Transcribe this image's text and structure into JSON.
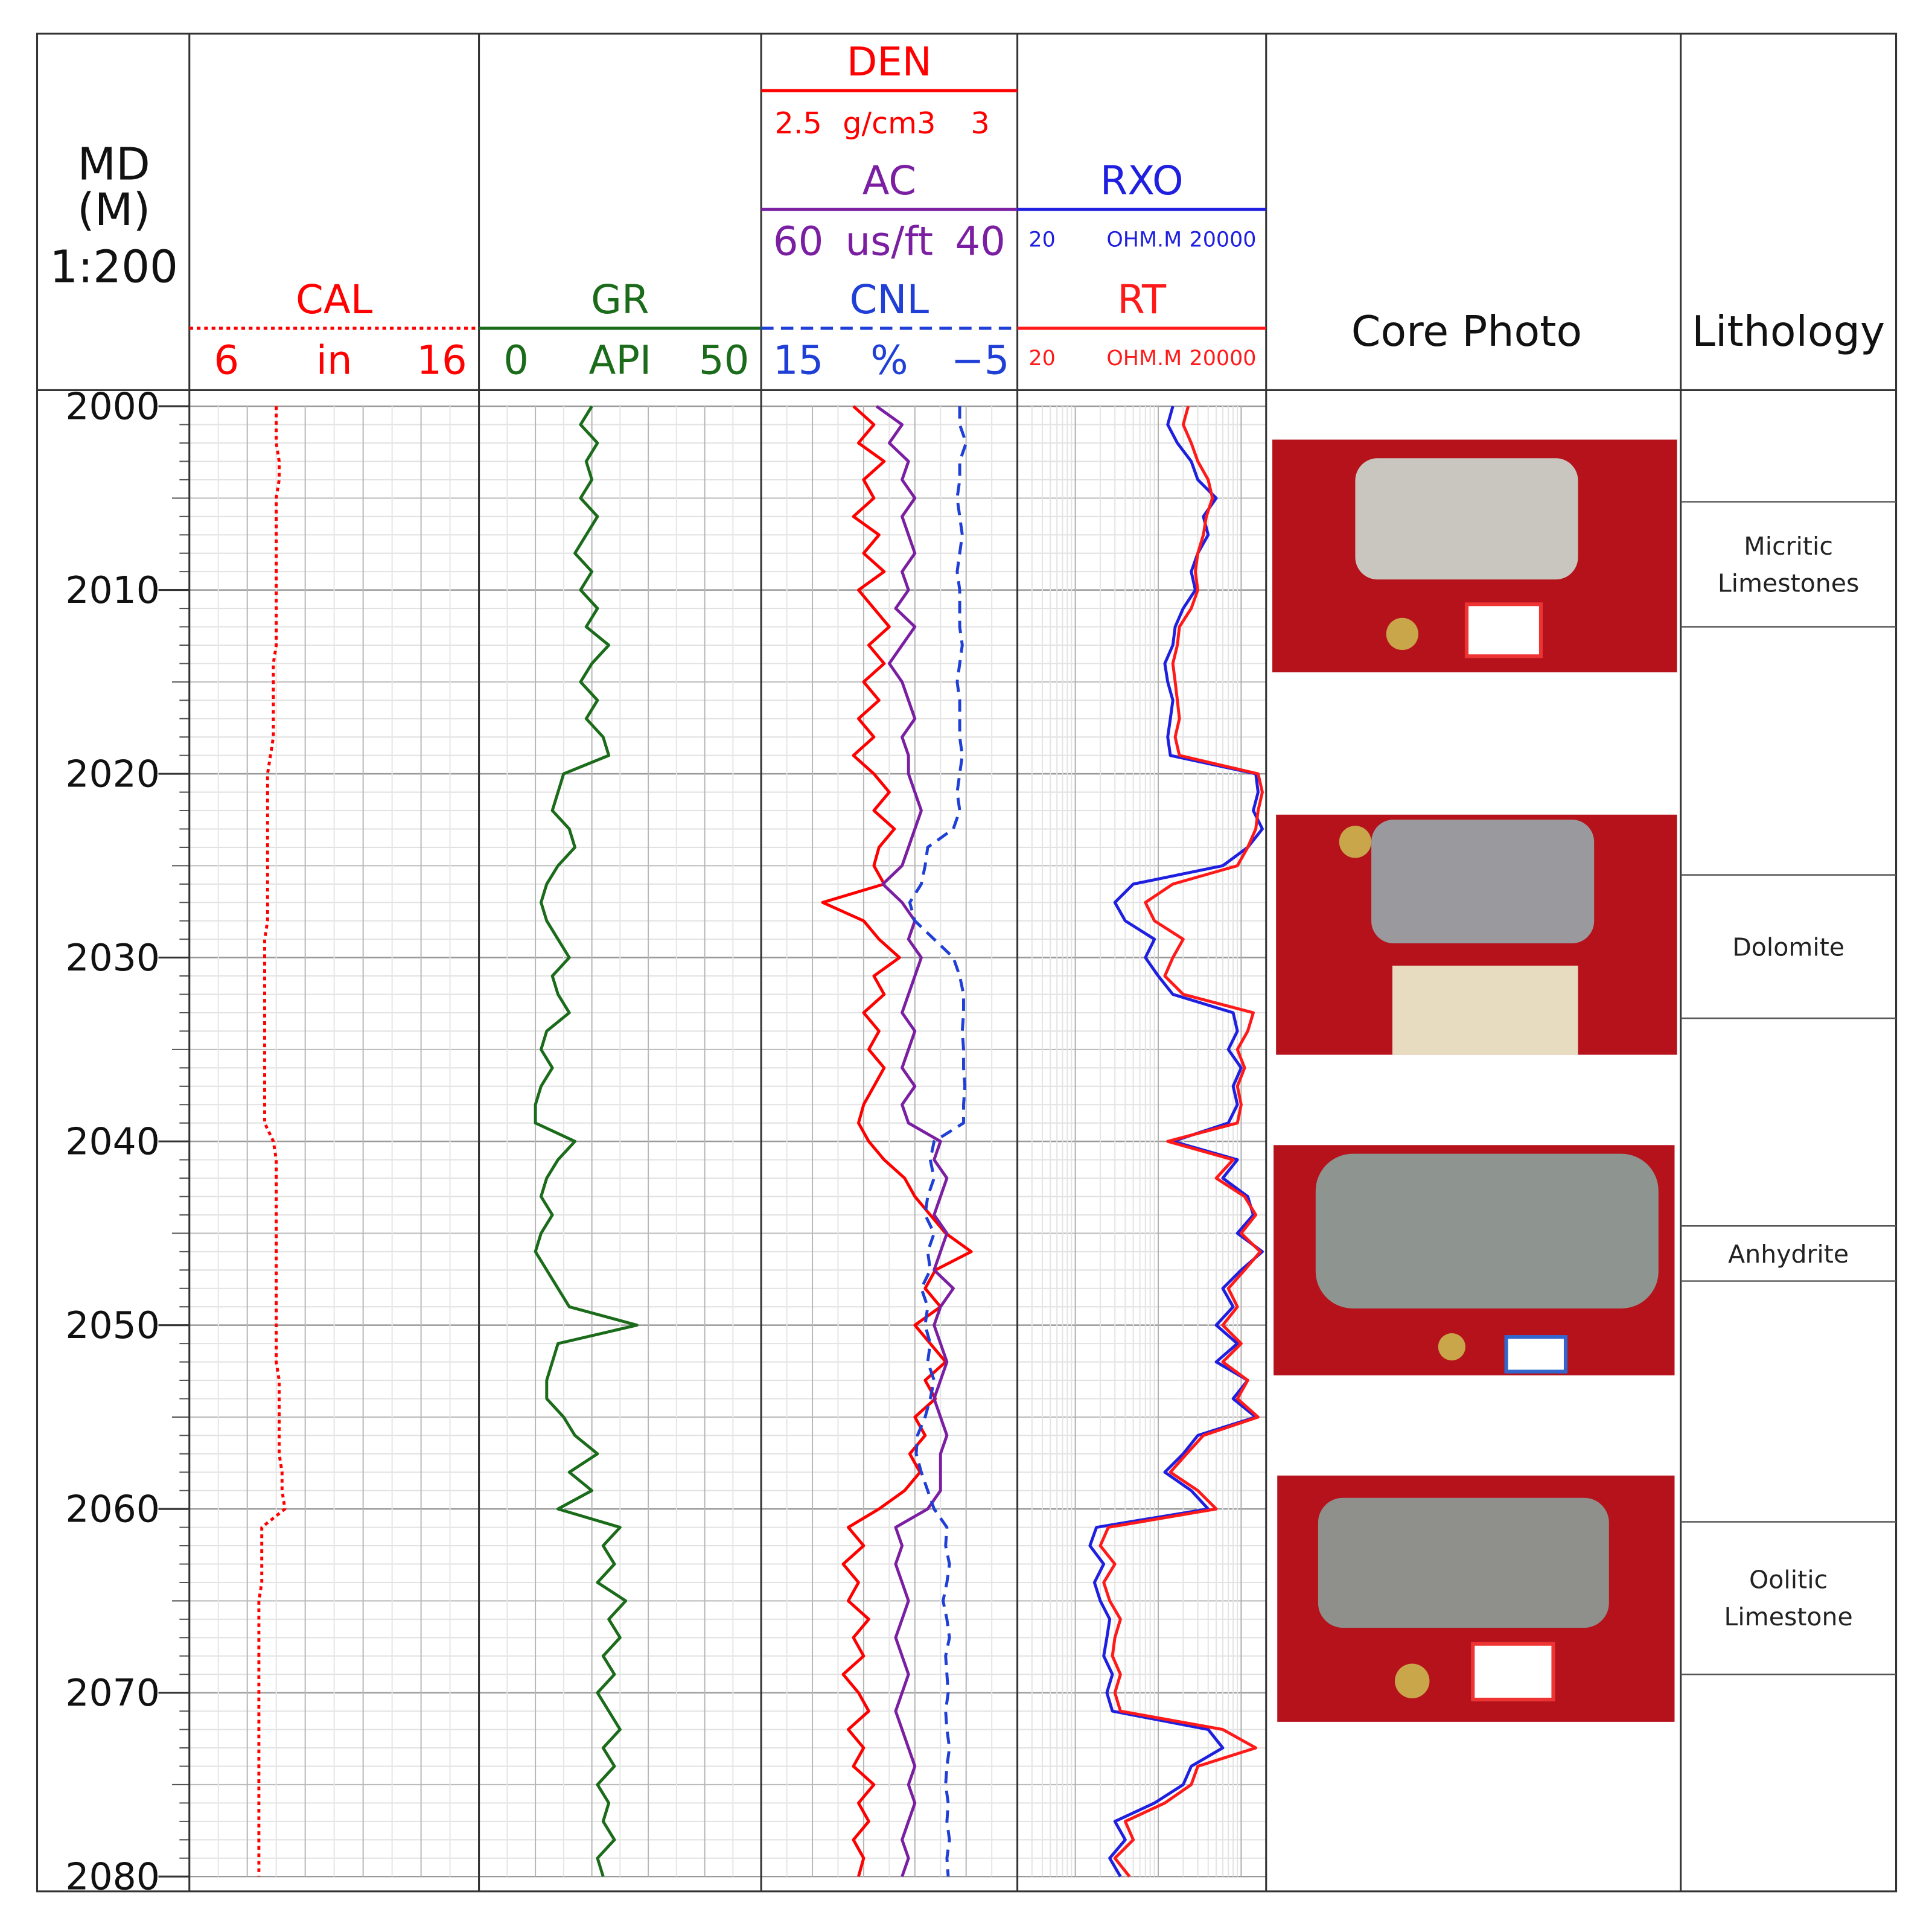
{
  "chart_data": {
    "type": "well-log",
    "depth_title": "MD",
    "depth_unit": "(M)",
    "depth_scale": "1:200",
    "ylim": [
      2000,
      2080
    ],
    "yticks": [
      2000,
      2010,
      2020,
      2030,
      2040,
      2050,
      2060,
      2070,
      2080
    ],
    "depth": [
      2000,
      2001,
      2002,
      2003,
      2004,
      2005,
      2006,
      2007,
      2008,
      2009,
      2010,
      2011,
      2012,
      2013,
      2014,
      2015,
      2016,
      2017,
      2018,
      2019,
      2020,
      2021,
      2022,
      2023,
      2024,
      2025,
      2026,
      2027,
      2028,
      2029,
      2030,
      2031,
      2032,
      2033,
      2034,
      2035,
      2036,
      2037,
      2038,
      2039,
      2040,
      2041,
      2042,
      2043,
      2044,
      2045,
      2046,
      2047,
      2048,
      2049,
      2050,
      2051,
      2052,
      2053,
      2054,
      2055,
      2056,
      2057,
      2058,
      2059,
      2060,
      2061,
      2062,
      2063,
      2064,
      2065,
      2066,
      2067,
      2068,
      2069,
      2070,
      2071,
      2072,
      2073,
      2074,
      2075,
      2076,
      2077,
      2078,
      2079,
      2080
    ],
    "tracks": [
      {
        "grid_divisions": 5,
        "curves": [
          {
            "name": "CAL",
            "unit": "in",
            "xlim": [
              6,
              16
            ],
            "color": "#ff0000",
            "line_style": "dotted",
            "values": [
              9,
              9,
              9,
              9.1,
              9.1,
              9,
              9,
              9,
              9,
              9,
              9,
              9,
              9,
              9,
              8.9,
              8.9,
              8.9,
              8.9,
              8.9,
              8.8,
              8.7,
              8.7,
              8.7,
              8.7,
              8.7,
              8.7,
              8.7,
              8.7,
              8.7,
              8.6,
              8.6,
              8.6,
              8.6,
              8.6,
              8.6,
              8.6,
              8.6,
              8.6,
              8.6,
              8.6,
              8.9,
              9,
              9,
              9,
              9,
              9,
              9,
              9,
              9,
              9,
              9,
              9,
              9,
              9.1,
              9.1,
              9.1,
              9.1,
              9.1,
              9.2,
              9.2,
              9.3,
              8.5,
              8.5,
              8.5,
              8.5,
              8.4,
              8.4,
              8.4,
              8.4,
              8.4,
              8.4,
              8.4,
              8.4,
              8.4,
              8.4,
              8.4,
              8.4,
              8.4,
              8.4,
              8.4,
              8.4
            ]
          }
        ]
      },
      {
        "grid_divisions": 5,
        "curves": [
          {
            "name": "GR",
            "unit": "API",
            "xlim": [
              0,
              50
            ],
            "color": "#1a6b1a",
            "line_style": "solid",
            "values": [
              20,
              18,
              21,
              19,
              20,
              18,
              21,
              19,
              17,
              20,
              18,
              21,
              19,
              23,
              20,
              18,
              21,
              19,
              22,
              23,
              15,
              14,
              13,
              16,
              17,
              14,
              12,
              11,
              12,
              14,
              16,
              13,
              14,
              16,
              12,
              11,
              13,
              11,
              10,
              10,
              17,
              14,
              12,
              11,
              13,
              11,
              10,
              12,
              14,
              16,
              28,
              14,
              13,
              12,
              12,
              15,
              17,
              21,
              16,
              20,
              14,
              25,
              22,
              24,
              21,
              26,
              23,
              25,
              22,
              24,
              21,
              23,
              25,
              22,
              24,
              21,
              23,
              22,
              24,
              21,
              22
            ]
          }
        ]
      },
      {
        "grid_divisions": 5,
        "curves": [
          {
            "name": "DEN",
            "unit": "g/cm3",
            "xlim": [
              2.5,
              3
            ],
            "color": "#ff0000",
            "line_style": "solid",
            "values": [
              2.68,
              2.72,
              2.69,
              2.74,
              2.7,
              2.72,
              2.68,
              2.73,
              2.7,
              2.74,
              2.69,
              2.72,
              2.75,
              2.71,
              2.74,
              2.7,
              2.73,
              2.69,
              2.72,
              2.68,
              2.72,
              2.75,
              2.72,
              2.76,
              2.73,
              2.72,
              2.74,
              2.62,
              2.7,
              2.73,
              2.77,
              2.72,
              2.74,
              2.7,
              2.73,
              2.71,
              2.74,
              2.72,
              2.7,
              2.69,
              2.71,
              2.74,
              2.78,
              2.8,
              2.83,
              2.86,
              2.91,
              2.84,
              2.82,
              2.85,
              2.8,
              2.83,
              2.86,
              2.82,
              2.84,
              2.8,
              2.82,
              2.79,
              2.81,
              2.78,
              2.73,
              2.67,
              2.7,
              2.66,
              2.69,
              2.67,
              2.71,
              2.68,
              2.7,
              2.66,
              2.69,
              2.71,
              2.67,
              2.7,
              2.68,
              2.72,
              2.69,
              2.71,
              2.68,
              2.7,
              2.69
            ]
          },
          {
            "name": "AC",
            "unit": "us/ft",
            "xlim": [
              60,
              40
            ],
            "color": "#7b1fa2",
            "line_style": "solid",
            "values": [
              51,
              49,
              50,
              48.5,
              49,
              48,
              49,
              48.5,
              48,
              49,
              48.5,
              49.5,
              48,
              49,
              50,
              49,
              48.5,
              48,
              49,
              48.5,
              48.5,
              48,
              47.5,
              48,
              48.5,
              49,
              50.5,
              49,
              48,
              48.5,
              47.5,
              48,
              48.5,
              49,
              48,
              48.5,
              49,
              48,
              49,
              48.5,
              46,
              46.5,
              45.5,
              46,
              46.5,
              45.5,
              46,
              46.5,
              45,
              46,
              46.5,
              46,
              45.5,
              46,
              46.5,
              46,
              45.5,
              46,
              46,
              46,
              47,
              49.5,
              49,
              49.5,
              49,
              48.5,
              49,
              49.5,
              49,
              48.5,
              49,
              49.5,
              49,
              48.5,
              48,
              48.5,
              48,
              48.5,
              49,
              48.5,
              49
            ]
          },
          {
            "name": "CNL",
            "unit": "%",
            "xlim": [
              15,
              {
                "value": -5,
                "label": "−5"
              }
            ],
            "color": "#1f3fd6",
            "line_style": "dashed",
            "values": [
              -0.5,
              -0.5,
              -1,
              -0.5,
              -0.5,
              -0.3,
              -0.5,
              -0.7,
              -0.5,
              -0.3,
              -0.5,
              -0.5,
              -0.5,
              -0.7,
              -0.5,
              -0.3,
              -0.5,
              -0.5,
              -0.5,
              -0.7,
              -0.5,
              -0.3,
              -0.5,
              0,
              2,
              2.2,
              2.5,
              3.4,
              3,
              1.5,
              0,
              -0.5,
              -0.8,
              -0.8,
              -0.7,
              -0.8,
              -0.8,
              -0.9,
              -0.8,
              -0.8,
              1.5,
              1.8,
              1.5,
              2,
              2.2,
              1.5,
              2,
              1.8,
              2.5,
              2,
              2.2,
              1.8,
              2,
              1.5,
              1.8,
              2.2,
              2.8,
              2.9,
              2.5,
              2,
              1.5,
              0.5,
              0.6,
              0.3,
              0.5,
              0.8,
              0.5,
              0.3,
              0.6,
              0.5,
              0.4,
              0.6,
              0.5,
              0.3,
              0.5,
              0.6,
              0.4,
              0.5,
              0.3,
              0.5,
              0.4
            ]
          }
        ]
      },
      {
        "log": true,
        "curves": [
          {
            "name": "RXO",
            "unit": "OHM.M",
            "xlim": [
              20,
              20000
            ],
            "color": "#1f1fe0",
            "line_style": "solid",
            "values": [
              1500,
              1300,
              1700,
              2500,
              3000,
              5000,
              3500,
              4000,
              3000,
              2500,
              2800,
              2000,
              1600,
              1500,
              1200,
              1300,
              1500,
              1400,
              1300,
              1400,
              15000,
              16000,
              14000,
              18000,
              12000,
              6000,
              500,
              300,
              400,
              900,
              700,
              1000,
              1500,
              8000,
              9000,
              7000,
              10000,
              8000,
              9000,
              7000,
              1500,
              9000,
              6000,
              12000,
              14000,
              9000,
              18000,
              10000,
              6000,
              8000,
              5000,
              9000,
              5000,
              12000,
              8000,
              15000,
              3000,
              2000,
              1200,
              2500,
              4000,
              180,
              150,
              220,
              170,
              200,
              260,
              240,
              220,
              280,
              240,
              280,
              4000,
              6000,
              2500,
              2000,
              900,
              300,
              400,
              260,
              350
            ]
          },
          {
            "name": "RT",
            "unit": "OHM.M",
            "xlim": [
              20,
              20000
            ],
            "color": "#ff1a1a",
            "line_style": "solid",
            "values": [
              2300,
              2000,
              2500,
              3000,
              4000,
              4500,
              3800,
              3500,
              3000,
              2800,
              3000,
              2500,
              1800,
              1700,
              1500,
              1600,
              1700,
              1800,
              1600,
              1800,
              16000,
              18000,
              16000,
              15000,
              12000,
              9000,
              1500,
              700,
              900,
              2000,
              1500,
              1200,
              2000,
              14000,
              12000,
              9000,
              11000,
              9000,
              10000,
              9000,
              1300,
              8000,
              5000,
              11000,
              15000,
              10000,
              17000,
              11000,
              7000,
              9000,
              6000,
              10000,
              6000,
              12000,
              9000,
              16000,
              3500,
              2200,
              1400,
              3000,
              5000,
              250,
              200,
              300,
              220,
              260,
              350,
              300,
              280,
              350,
              300,
              350,
              6000,
              15000,
              3000,
              2500,
              1200,
              400,
              500,
              300,
              450
            ]
          }
        ]
      }
    ],
    "core_photo_title": "Core Photo",
    "lithology_title": "Lithology",
    "lithology": [
      {
        "label": "Micritic Limestones",
        "top": 2005.2,
        "base": 2012
      },
      {
        "label": "Dolomite",
        "top": 2025.5,
        "base": 2033.3
      },
      {
        "label": "Anhydrite",
        "top": 2044.6,
        "base": 2047.6
      },
      {
        "label": "Oolitic Limestone",
        "top": 2060.7,
        "base": 2069
      }
    ]
  }
}
